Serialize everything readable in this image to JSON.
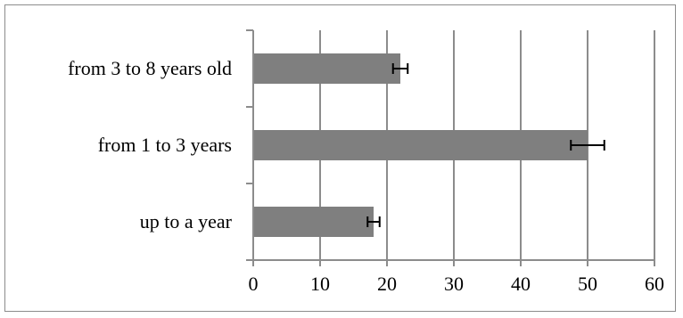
{
  "chart_data": {
    "type": "bar",
    "orientation": "horizontal",
    "categories": [
      "up to a year",
      "from 1 to 3 years",
      "from 3 to 8 years old"
    ],
    "values": [
      18,
      50,
      22
    ],
    "errors": [
      0.9,
      2.5,
      1.1
    ],
    "xlim": [
      0,
      60
    ],
    "xticks": [
      0,
      10,
      20,
      30,
      40,
      50,
      60
    ],
    "grid": "vertical",
    "bar_color": "#7f7f7f",
    "grid_color": "#8c8c8c",
    "error_color": "#000000",
    "title": "",
    "xlabel": "",
    "ylabel": ""
  }
}
